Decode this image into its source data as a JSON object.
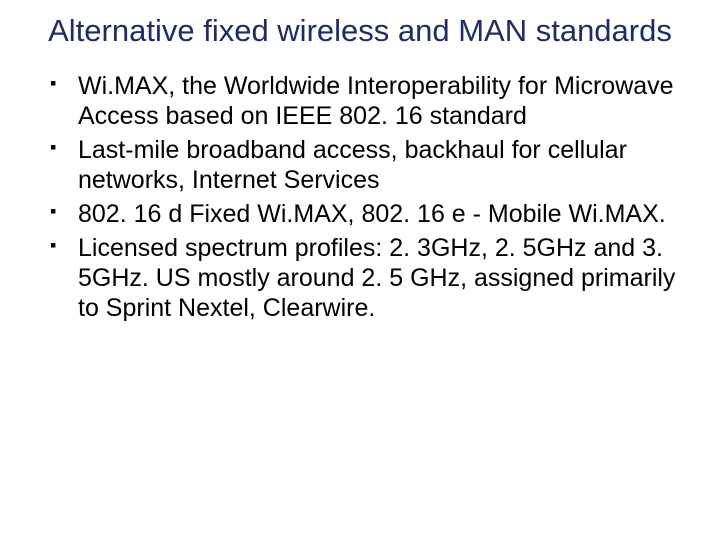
{
  "title_color": "#1f2a6b",
  "body_color": "#000000",
  "title": "Alternative fixed wireless and MAN standards",
  "bullets": [
    "Wi.MAX, the Worldwide Interoperability for Microwave Access based on IEEE 802. 16 standard",
    "Last-mile broadband access, backhaul for cellular networks, Internet Services",
    "802. 16 d Fixed Wi.MAX, 802. 16 e - Mobile Wi.MAX.",
    "Licensed spectrum profiles: 2. 3GHz, 2. 5GHz and 3. 5GHz. US mostly around 2. 5 GHz, assigned primarily to Sprint Nextel, Clearwire."
  ]
}
